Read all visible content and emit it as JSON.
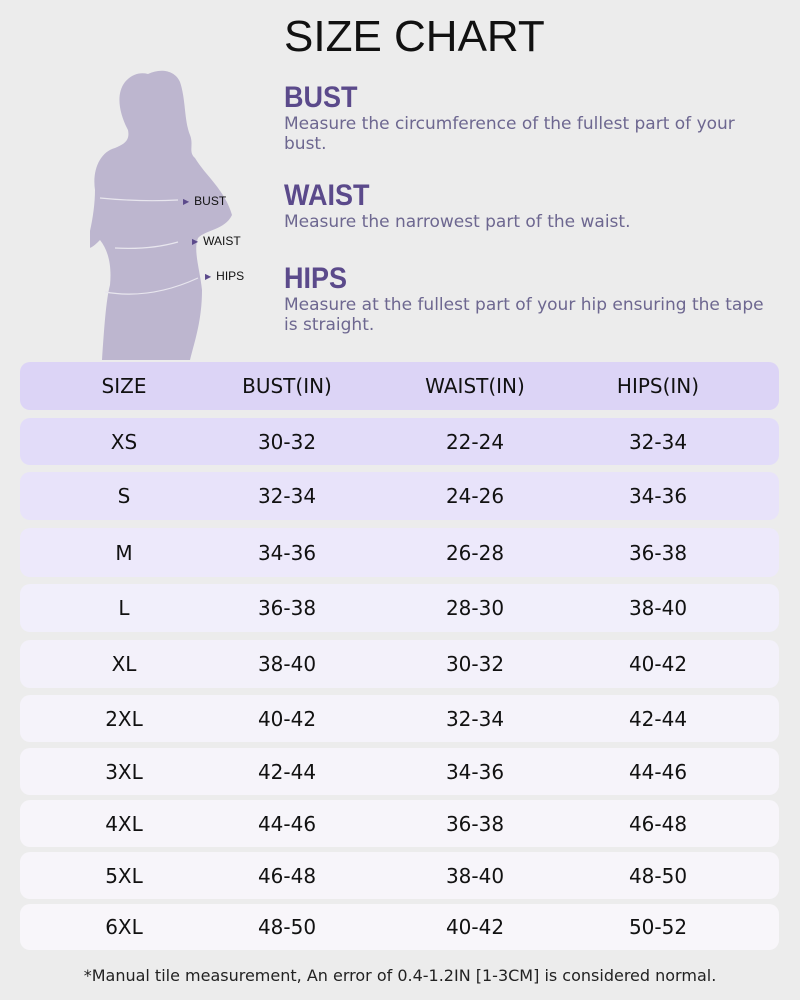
{
  "title": "SIZE CHART",
  "figure_labels": {
    "bust": "BUST",
    "waist": "WAIST",
    "hips": "HIPS"
  },
  "sections": [
    {
      "heading": "BUST",
      "text": "Measure the circumference of the fullest part of your bust."
    },
    {
      "heading": "WAIST",
      "text": "Measure the narrowest part of the waist."
    },
    {
      "heading": "HIPS",
      "text": "Measure at the fullest part of your hip ensuring the tape is straight."
    }
  ],
  "table": {
    "headers": [
      "SIZE",
      "BUST(IN)",
      "WAIST(IN)",
      "HIPS(IN)"
    ],
    "rows": [
      [
        "XS",
        "30-32",
        "22-24",
        "32-34"
      ],
      [
        "S",
        "32-34",
        "24-26",
        "34-36"
      ],
      [
        "M",
        "34-36",
        "26-28",
        "36-38"
      ],
      [
        "L",
        "36-38",
        "28-30",
        "38-40"
      ],
      [
        "XL",
        "38-40",
        "30-32",
        "40-42"
      ],
      [
        "2XL",
        "40-42",
        "32-34",
        "42-44"
      ],
      [
        "3XL",
        "42-44",
        "34-36",
        "44-46"
      ],
      [
        "4XL",
        "44-46",
        "36-38",
        "46-48"
      ],
      [
        "5XL",
        "46-48",
        "38-40",
        "48-50"
      ],
      [
        "6XL",
        "48-50",
        "40-42",
        "50-52"
      ]
    ]
  },
  "footnote": "*Manual tile measurement, An error of 0.4-1.2IN [1-3CM] is considered normal.",
  "colors": {
    "accent": "#5b4a8b",
    "silhouette": "#bdb6cf",
    "header_row": "#dcd4f6",
    "background": "#ececec"
  }
}
